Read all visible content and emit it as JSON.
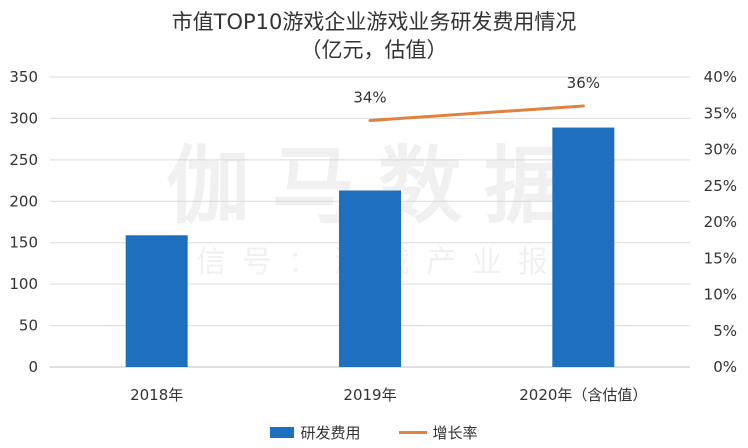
{
  "chart_data": {
    "type": "bar",
    "title_line1": "市值TOP10游戏企业游戏业务研发费用情况",
    "title_line2": "（亿元，估值）",
    "categories": [
      "2018年",
      "2019年",
      "2020年（含估值）"
    ],
    "series": [
      {
        "name": "研发费用",
        "type": "bar",
        "axis": "left",
        "color": "#1f6fbf",
        "values": [
          159,
          213,
          289
        ]
      },
      {
        "name": "增长率",
        "type": "line",
        "axis": "right",
        "color": "#e0823e",
        "values": [
          null,
          0.34,
          0.36
        ],
        "labels": [
          "",
          "34%",
          "36%"
        ]
      }
    ],
    "y_left": {
      "range": [
        0,
        350
      ],
      "ticks": [
        "0",
        "50",
        "100",
        "150",
        "200",
        "250",
        "300",
        "350"
      ]
    },
    "y_right": {
      "range": [
        0,
        0.4
      ],
      "ticks": [
        "0%",
        "5%",
        "10%",
        "15%",
        "20%",
        "25%",
        "30%",
        "35%",
        "40%"
      ]
    },
    "grid": true,
    "legend_position": "bottom",
    "watermark_large": "伽马数据",
    "watermark_small": "微信号：游戏产业报告"
  }
}
